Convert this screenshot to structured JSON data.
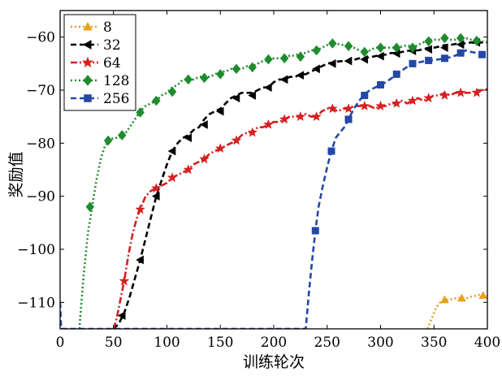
{
  "chart_data": {
    "type": "line",
    "title": "",
    "xlabel": "训练轮次",
    "ylabel": "奖励值",
    "xlim": [
      0,
      400
    ],
    "ylim": [
      -115,
      -55
    ],
    "xticks": [
      0,
      50,
      100,
      150,
      200,
      250,
      300,
      350,
      400
    ],
    "yticks": [
      -110,
      -100,
      -90,
      -80,
      -70,
      -60
    ],
    "xtick_labels": [
      "0",
      "50",
      "100",
      "150",
      "200",
      "250",
      "300",
      "350",
      "400"
    ],
    "ytick_labels": [
      "−110",
      "−100",
      "−90",
      "−80",
      "−70",
      "−60"
    ],
    "legend_position": "top-left",
    "series": [
      {
        "name": "8",
        "color": "#E8A020",
        "line_style": "dotted",
        "marker": "triangle-up",
        "x": [
          344,
          348,
          352,
          356,
          360,
          364,
          368,
          372,
          376,
          380,
          384,
          388,
          392,
          396,
          400
        ],
        "y": [
          -115,
          -113,
          -111,
          -110,
          -109.5,
          -109.5,
          -109.3,
          -109.2,
          -109.2,
          -109.3,
          -109,
          -108.8,
          -108.6,
          -108.7,
          -108.8
        ],
        "marker_x": [
          360,
          376,
          396
        ],
        "marker_y": [
          -109.5,
          -109.2,
          -108.7
        ]
      },
      {
        "name": "32",
        "color": "#000000",
        "line_style": "dashed",
        "marker": "triangle-left",
        "x": [
          50,
          55,
          60,
          65,
          70,
          75,
          80,
          85,
          90,
          95,
          100,
          105,
          110,
          115,
          120,
          125,
          130,
          135,
          140,
          145,
          150,
          155,
          160,
          165,
          170,
          175,
          180,
          185,
          190,
          195,
          200,
          205,
          210,
          215,
          220,
          225,
          230,
          235,
          240,
          245,
          250,
          255,
          260,
          265,
          270,
          275,
          280,
          285,
          290,
          295,
          300,
          305,
          310,
          315,
          320,
          325,
          330,
          335,
          340,
          345,
          350,
          355,
          360,
          365,
          370,
          375,
          380,
          385,
          390,
          395,
          400
        ],
        "y": [
          -115,
          -114,
          -112,
          -109,
          -105.5,
          -102,
          -98,
          -94,
          -90,
          -87,
          -84,
          -81.5,
          -80,
          -79,
          -78.5,
          -77.5,
          -77,
          -75.5,
          -74.5,
          -74,
          -73.5,
          -72.5,
          -71.5,
          -71,
          -70.5,
          -70.5,
          -70.5,
          -70,
          -69.5,
          -69.5,
          -68.5,
          -68,
          -68,
          -67.5,
          -67.5,
          -67,
          -67,
          -66.5,
          -66,
          -65.5,
          -65,
          -64.8,
          -64.6,
          -64.5,
          -64.6,
          -64.3,
          -64,
          -64,
          -63.8,
          -63.6,
          -63.4,
          -63.3,
          -63,
          -63,
          -62.8,
          -62.6,
          -62.5,
          -62.5,
          -62.3,
          -62,
          -62,
          -61.8,
          -61.5,
          -61.5,
          -61.3,
          -61.2,
          -61.2,
          -61,
          -61.2,
          -61,
          -61
        ],
        "marker_x": [
          58,
          75,
          90,
          105,
          120,
          135,
          150,
          165,
          180,
          195,
          210,
          225,
          240,
          255,
          270,
          285,
          300,
          315,
          330,
          345,
          360,
          375,
          390
        ],
        "marker_y": [
          -112.5,
          -102,
          -90,
          -81.5,
          -79,
          -76.5,
          -74,
          -71.5,
          -71,
          -69.5,
          -68,
          -67.2,
          -66,
          -65,
          -64.5,
          -64.2,
          -63.6,
          -63.1,
          -62.6,
          -62.3,
          -62,
          -61.4,
          -61
        ]
      },
      {
        "name": "64",
        "color": "#D42020",
        "line_style": "dash-dot",
        "marker": "star",
        "x": [
          50,
          53,
          56,
          60,
          64,
          68,
          72,
          76,
          80,
          85,
          90,
          95,
          100,
          105,
          110,
          115,
          120,
          125,
          130,
          135,
          140,
          145,
          150,
          155,
          160,
          165,
          170,
          175,
          180,
          185,
          190,
          195,
          200,
          205,
          210,
          215,
          220,
          225,
          230,
          235,
          240,
          245,
          250,
          255,
          260,
          265,
          270,
          275,
          280,
          285,
          290,
          295,
          300,
          305,
          310,
          315,
          320,
          325,
          330,
          335,
          340,
          345,
          350,
          355,
          360,
          365,
          370,
          375,
          380,
          385,
          390,
          395,
          400
        ],
        "y": [
          -115,
          -113,
          -110,
          -106,
          -101,
          -97,
          -94,
          -92,
          -90,
          -89,
          -88.5,
          -88,
          -87.5,
          -86.5,
          -86,
          -85.5,
          -85,
          -84,
          -83.5,
          -83,
          -82,
          -81.5,
          -81,
          -80.5,
          -80,
          -79.5,
          -78.5,
          -78,
          -78,
          -77,
          -77,
          -76.5,
          -76,
          -76,
          -75.5,
          -75,
          -75,
          -75,
          -74.5,
          -75,
          -75,
          -74,
          -73.5,
          -73.5,
          -74,
          -73.5,
          -73.5,
          -73,
          -73,
          -73,
          -73,
          -73.5,
          -73,
          -73,
          -72.5,
          -72.5,
          -72,
          -72.5,
          -72,
          -71.5,
          -72,
          -71.5,
          -71,
          -71,
          -70.5,
          -71,
          -70.5,
          -70.5,
          -70.5,
          -70.5,
          -70,
          -70,
          -69.8
        ],
        "marker_x": [
          60,
          75,
          90,
          105,
          120,
          135,
          150,
          165,
          180,
          195,
          210,
          225,
          240,
          255,
          270,
          285,
          300,
          315,
          330,
          345,
          360,
          375,
          390
        ],
        "marker_y": [
          -106,
          -92.5,
          -88.5,
          -86.5,
          -85,
          -83,
          -81,
          -79.5,
          -78,
          -76.5,
          -75.5,
          -75,
          -75,
          -73.5,
          -73.5,
          -73,
          -73,
          -72.5,
          -72,
          -71.5,
          -71,
          -70.5,
          -70.5
        ]
      },
      {
        "name": "128",
        "color": "#1E8C2E",
        "line_style": "dotted",
        "marker": "diamond",
        "x": [
          18,
          22,
          26,
          30,
          34,
          38,
          42,
          46,
          50,
          55,
          60,
          65,
          70,
          75,
          80,
          85,
          90,
          95,
          100,
          105,
          110,
          115,
          120,
          125,
          130,
          135,
          140,
          145,
          150,
          155,
          160,
          165,
          170,
          175,
          180,
          185,
          190,
          195,
          200,
          205,
          210,
          215,
          220,
          225,
          230,
          235,
          240,
          245,
          250,
          255,
          260,
          265,
          270,
          275,
          280,
          285,
          290,
          295,
          300,
          305,
          310,
          315,
          320,
          325,
          330,
          335,
          340,
          345,
          350,
          355,
          360,
          365,
          370,
          375,
          380,
          385,
          390,
          395,
          400
        ],
        "y": [
          -115,
          -105,
          -97,
          -92,
          -87,
          -83,
          -80.5,
          -79.5,
          -79,
          -79,
          -78.5,
          -77,
          -75.5,
          -74,
          -73,
          -72.5,
          -72,
          -71,
          -70.5,
          -69.5,
          -69,
          -68,
          -68,
          -68,
          -67.5,
          -67.5,
          -67.5,
          -67,
          -66.5,
          -66.5,
          -66,
          -66,
          -66,
          -65.5,
          -65.5,
          -65,
          -64.5,
          -64.5,
          -64,
          -64,
          -64,
          -63.5,
          -63.5,
          -63,
          -63,
          -62.5,
          -62.5,
          -62,
          -61.5,
          -61,
          -61.3,
          -61.5,
          -61.7,
          -62,
          -62.5,
          -62.8,
          -62.5,
          -62,
          -62,
          -62,
          -62,
          -62,
          -61.8,
          -61.5,
          -62,
          -61.5,
          -61,
          -60.5,
          -60.5,
          -60.5,
          -60.2,
          -60.5,
          -60.5,
          -60.2,
          -60.2,
          -60.5,
          -60.5,
          -60.8,
          -61
        ],
        "marker_x": [
          28,
          45,
          58,
          75,
          90,
          105,
          120,
          135,
          150,
          165,
          180,
          195,
          210,
          225,
          240,
          255,
          270,
          285,
          300,
          315,
          330,
          345,
          360,
          375,
          390
        ],
        "marker_y": [
          -92,
          -79.5,
          -78.5,
          -74.2,
          -72,
          -70.3,
          -68,
          -67.7,
          -67,
          -66,
          -65.7,
          -64.2,
          -64,
          -63.7,
          -62.5,
          -61.2,
          -61.7,
          -62.8,
          -62,
          -62,
          -62,
          -60.8,
          -60.2,
          -60.2,
          -60.7
        ]
      },
      {
        "name": "256",
        "color": "#2448A8",
        "line_style": "dashed",
        "marker": "square",
        "x": [
          0,
          1,
          230,
          233,
          236,
          239,
          242,
          246,
          250,
          254,
          258,
          262,
          266,
          270,
          275,
          280,
          285,
          290,
          295,
          300,
          305,
          310,
          315,
          320,
          325,
          330,
          335,
          340,
          345,
          350,
          355,
          360,
          365,
          370,
          375,
          380,
          385,
          390,
          395,
          400
        ],
        "y": [
          -110,
          -115,
          -115,
          -108,
          -102,
          -96.5,
          -92,
          -88,
          -84.5,
          -81.5,
          -79,
          -78,
          -77,
          -75.5,
          -73.5,
          -72,
          -70.8,
          -70,
          -69.5,
          -69,
          -68.5,
          -67.8,
          -67,
          -66.3,
          -65.6,
          -65,
          -64.8,
          -64.6,
          -64.4,
          -64.3,
          -64.2,
          -64,
          -63.8,
          -63.5,
          -63,
          -62.5,
          -62.8,
          -63,
          -63.3,
          -63.2
        ],
        "marker_x": [
          239,
          254,
          270,
          285,
          300,
          315,
          330,
          345,
          360,
          375,
          395
        ],
        "marker_y": [
          -96.5,
          -81.5,
          -75.5,
          -71,
          -69,
          -67,
          -65,
          -64.4,
          -64,
          -63,
          -63.3
        ]
      }
    ]
  }
}
